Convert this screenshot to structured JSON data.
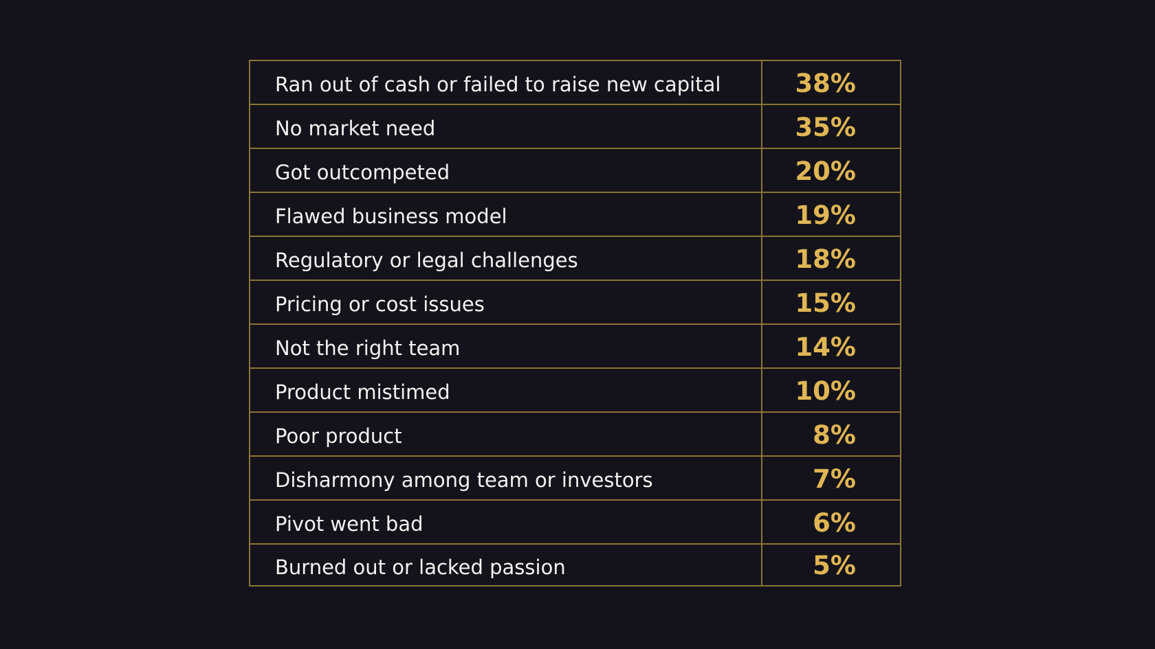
{
  "colors": {
    "background": "#14131b",
    "border": "#8c7434",
    "label_text": "#f2f2f2",
    "value_text": "#e0b654"
  },
  "chart_data": {
    "type": "table",
    "title": "",
    "columns": [
      "",
      ""
    ],
    "rows": [
      {
        "label": "Ran out of cash or failed to raise new capital",
        "value": 38,
        "value_text": "38%"
      },
      {
        "label": "No market need",
        "value": 35,
        "value_text": "35%"
      },
      {
        "label": "Got outcompeted",
        "value": 20,
        "value_text": "20%"
      },
      {
        "label": "Flawed business model",
        "value": 19,
        "value_text": "19%"
      },
      {
        "label": "Regulatory or legal challenges",
        "value": 18,
        "value_text": "18%"
      },
      {
        "label": "Pricing or cost issues",
        "value": 15,
        "value_text": "15%"
      },
      {
        "label": "Not the right team",
        "value": 14,
        "value_text": "14%"
      },
      {
        "label": "Product mistimed",
        "value": 10,
        "value_text": "10%"
      },
      {
        "label": "Poor product",
        "value": 8,
        "value_text": "8%"
      },
      {
        "label": "Disharmony among team or investors",
        "value": 7,
        "value_text": "7%"
      },
      {
        "label": "Pivot went bad",
        "value": 6,
        "value_text": "6%"
      },
      {
        "label": "Burned out or lacked passion",
        "value": 5,
        "value_text": "5%"
      }
    ]
  }
}
